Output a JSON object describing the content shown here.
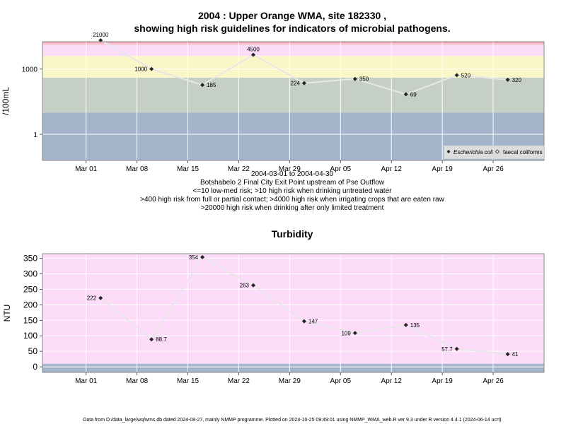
{
  "chart_data": [
    {
      "type": "scatter",
      "title_line1": "2004 : Upper Orange WMA, site 182330 ,",
      "title_line2": "showing high risk guidelines for indicators of microbial pathogens.",
      "ylabel": "/100mL",
      "y_scale": "log10",
      "ylim": [
        0.063,
        18000
      ],
      "y_ticks": [
        {
          "value": 1,
          "label": "1"
        },
        {
          "value": 1000,
          "label": "1000"
        }
      ],
      "xlim": [
        "2004-02-24",
        "2004-05-03"
      ],
      "x_ticks": [
        {
          "date": "2004-03-01",
          "label": "Mar 01"
        },
        {
          "date": "2004-03-08",
          "label": "Mar 08"
        },
        {
          "date": "2004-03-15",
          "label": "Mar 15"
        },
        {
          "date": "2004-03-22",
          "label": "Mar 22"
        },
        {
          "date": "2004-03-29",
          "label": "Mar 29"
        },
        {
          "date": "2004-04-05",
          "label": "Apr 05"
        },
        {
          "date": "2004-04-12",
          "label": "Apr 12"
        },
        {
          "date": "2004-04-19",
          "label": "Apr 19"
        },
        {
          "date": "2004-04-26",
          "label": "Apr 26"
        }
      ],
      "risk_bands": [
        {
          "from": 0.063,
          "to": 10,
          "color": "#a3b4cb"
        },
        {
          "from": 10,
          "to": 400,
          "color": "#c5cfc6"
        },
        {
          "from": 400,
          "to": 4000,
          "color": "#fbf6c8"
        },
        {
          "from": 4000,
          "to": 12500,
          "color": "#fcdcf9"
        },
        {
          "from": 12500,
          "to": 15000,
          "color": "#f7c8d8"
        },
        {
          "from": 15000,
          "to": 18000,
          "color": "#f3a9b6"
        }
      ],
      "series": [
        {
          "name": "Escherichia coli",
          "marker": "filled",
          "points": [
            {
              "date": "2004-03-03",
              "value": 21000,
              "label": "21000"
            },
            {
              "date": "2004-03-10",
              "value": 1000,
              "label": "1000"
            },
            {
              "date": "2004-03-17",
              "value": 185,
              "label": "185"
            },
            {
              "date": "2004-03-24",
              "value": 4500,
              "label": "4500"
            },
            {
              "date": "2004-03-31",
              "value": 224,
              "label": "224"
            },
            {
              "date": "2004-04-07",
              "value": 350,
              "label": "350"
            },
            {
              "date": "2004-04-14",
              "value": 69,
              "label": "69"
            },
            {
              "date": "2004-04-21",
              "value": 520,
              "label": "520"
            },
            {
              "date": "2004-04-28",
              "value": 320,
              "label": "320"
            }
          ]
        },
        {
          "name": "faecal coliforms",
          "marker": "open",
          "points": []
        }
      ],
      "legend_position": "bottom-right",
      "legend_colors": {
        "line": "#e6e6e6",
        "marker": "#222222",
        "legend_bg": "#dcdcdc"
      },
      "annotations": [
        "2004-03-01 to 2004-04-30",
        "Botshabelo 2 Final City Exit Point upstream of Pse Outflow",
        "<=10 low-med risk; >10 high risk when drinking untreated water",
        ">400 high risk from full or partial contact; >4000 high risk when irrigating crops that are eaten raw",
        ">20000 high risk when drinking after only limited treatment"
      ]
    },
    {
      "type": "scatter",
      "title": "Turbidity",
      "ylabel": "NTU",
      "ylim": [
        -18,
        365
      ],
      "y_ticks": [
        {
          "value": 0,
          "label": "0"
        },
        {
          "value": 50,
          "label": "50"
        },
        {
          "value": 100,
          "label": "100"
        },
        {
          "value": 150,
          "label": "150"
        },
        {
          "value": 200,
          "label": "200"
        },
        {
          "value": 250,
          "label": "250"
        },
        {
          "value": 300,
          "label": "300"
        },
        {
          "value": 350,
          "label": "350"
        }
      ],
      "xlim": [
        "2004-02-24",
        "2004-05-03"
      ],
      "x_ticks": [
        {
          "date": "2004-03-01",
          "label": "Mar 01"
        },
        {
          "date": "2004-03-08",
          "label": "Mar 08"
        },
        {
          "date": "2004-03-15",
          "label": "Mar 15"
        },
        {
          "date": "2004-03-22",
          "label": "Mar 22"
        },
        {
          "date": "2004-03-29",
          "label": "Mar 29"
        },
        {
          "date": "2004-04-05",
          "label": "Apr 05"
        },
        {
          "date": "2004-04-12",
          "label": "Apr 12"
        },
        {
          "date": "2004-04-19",
          "label": "Apr 19"
        },
        {
          "date": "2004-04-26",
          "label": "Apr 26"
        }
      ],
      "risk_bands": [
        {
          "from": -18,
          "to": 10,
          "color": "#a3b4cb"
        },
        {
          "from": 10,
          "to": 365,
          "color": "#fcdcf9"
        }
      ],
      "series": [
        {
          "name": "",
          "marker": "filled",
          "points": [
            {
              "date": "2004-03-03",
              "value": 222,
              "label": "222"
            },
            {
              "date": "2004-03-10",
              "value": 88.7,
              "label": "88.7"
            },
            {
              "date": "2004-03-17",
              "value": 354,
              "label": "354"
            },
            {
              "date": "2004-03-24",
              "value": 263,
              "label": "263"
            },
            {
              "date": "2004-03-31",
              "value": 147,
              "label": "147"
            },
            {
              "date": "2004-04-07",
              "value": 109,
              "label": "109"
            },
            {
              "date": "2004-04-14",
              "value": 135,
              "label": "135"
            },
            {
              "date": "2004-04-21",
              "value": 57.7,
              "label": "57.7"
            },
            {
              "date": "2004-04-28",
              "value": 41,
              "label": "41"
            }
          ]
        }
      ]
    }
  ],
  "footer": "Data from D:/data_large/wq/wms.db dated 2024-08-27, mainly NMMP programme. Plotted on 2024-10-25 09:49:01 using NMMP_WMA_web.R ver 9.3 under R version 4.4.1 (2024-06-14 ucrt)"
}
